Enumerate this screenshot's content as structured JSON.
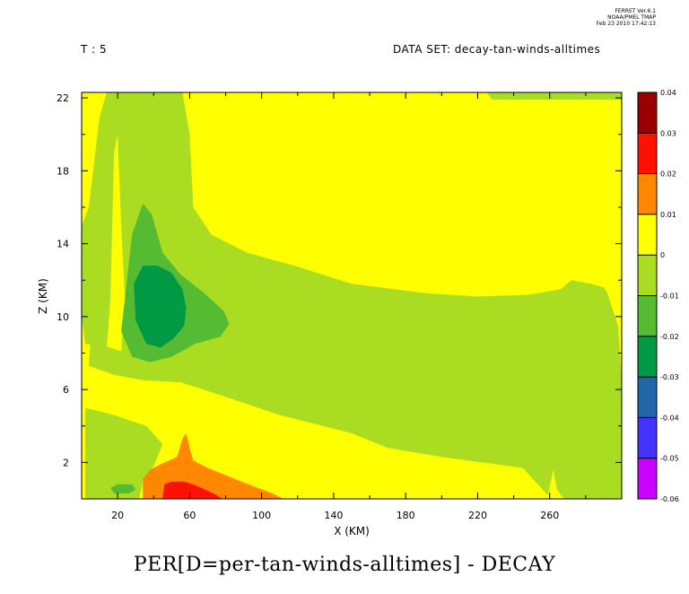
{
  "header": {
    "program_lines": [
      "FERRET Ver.6.1",
      "NOAA/PMEL TMAP",
      "Feb 23 2010 17:42:13"
    ],
    "time_label": "T : 5",
    "dataset_label": "DATA SET: decay-tan-winds-alltimes"
  },
  "chart_data": {
    "type": "heatmap",
    "title": "PER[D=per-tan-winds-alltimes] - DECAY",
    "xlabel": "X (KM)",
    "ylabel": "Z (KM)",
    "xlim": [
      0,
      300
    ],
    "ylim": [
      0,
      22.3
    ],
    "x_ticks": [
      20,
      60,
      100,
      140,
      180,
      220,
      260
    ],
    "y_ticks": [
      2,
      6,
      10,
      14,
      18,
      22
    ],
    "grid": false,
    "legend": "right",
    "colorbar": {
      "levels": [
        -0.06,
        -0.05,
        -0.04,
        -0.03,
        -0.02,
        -0.01,
        0,
        0.01,
        0.02,
        0.03,
        0.04
      ],
      "tick_labels": [
        "-0.06",
        "-0.05",
        "-0.04",
        "-0.03",
        "-0.02",
        "-0.01",
        "0",
        "0.01",
        "0.02",
        "0.03",
        "0.04"
      ],
      "colors": [
        "#cc00ff",
        "#4433ff",
        "#2266aa",
        "#009944",
        "#55bb33",
        "#aadd22",
        "#ffff00",
        "#ff8800",
        "#ff1100",
        "#990000"
      ]
    },
    "regions": [
      {
        "band": "0 to 0.01",
        "color": "#ffff00",
        "polygon": [
          [
            0,
            0
          ],
          [
            300,
            0
          ],
          [
            300,
            22.3
          ],
          [
            0,
            22.3
          ]
        ]
      },
      {
        "band": "-0.01 to 0",
        "color": "#aadd22",
        "polygon": [
          [
            0,
            15
          ],
          [
            4,
            16
          ],
          [
            10,
            21
          ],
          [
            14,
            22.3
          ],
          [
            56,
            22.3
          ],
          [
            60,
            20
          ],
          [
            62,
            16
          ],
          [
            72,
            14.5
          ],
          [
            92,
            13.5
          ],
          [
            118,
            12.8
          ],
          [
            150,
            11.8
          ],
          [
            190,
            11.3
          ],
          [
            220,
            11.1
          ],
          [
            248,
            11.2
          ],
          [
            266,
            11.5
          ],
          [
            272,
            12
          ],
          [
            283,
            11.8
          ],
          [
            290,
            11.6
          ],
          [
            292,
            11.3
          ],
          [
            298,
            9.5
          ],
          [
            300,
            6.5
          ],
          [
            300,
            0
          ],
          [
            268,
            0
          ],
          [
            264,
            0.5
          ],
          [
            262,
            1.6
          ],
          [
            259,
            0.2
          ],
          [
            245,
            1.7
          ],
          [
            200,
            2.3
          ],
          [
            170,
            2.8
          ],
          [
            150,
            3.6
          ],
          [
            110,
            4.6
          ],
          [
            80,
            5.6
          ],
          [
            55,
            6.4
          ],
          [
            35,
            6.5
          ],
          [
            18,
            6.8
          ],
          [
            4,
            7.3
          ],
          [
            5,
            8.7
          ],
          [
            10,
            8.5
          ],
          [
            22,
            8.1
          ],
          [
            24,
            11
          ],
          [
            22,
            15
          ],
          [
            20,
            20
          ],
          [
            18,
            19
          ],
          [
            17,
            15
          ],
          [
            16,
            11
          ],
          [
            14,
            8.3
          ],
          [
            2,
            8.5
          ],
          [
            0,
            10
          ]
        ]
      },
      {
        "band": "-0.01 to 0",
        "color": "#aadd22",
        "polygon": [
          [
            2,
            0
          ],
          [
            2,
            5
          ],
          [
            18,
            4.6
          ],
          [
            36,
            4.0
          ],
          [
            45,
            3.0
          ],
          [
            40,
            1.8
          ],
          [
            34,
            1.0
          ],
          [
            32,
            0
          ]
        ]
      },
      {
        "band": "-0.01 to 0",
        "color": "#aadd22",
        "polygon": [
          [
            225,
            22.3
          ],
          [
            300,
            22.3
          ],
          [
            300,
            21.9
          ],
          [
            228,
            21.9
          ]
        ]
      },
      {
        "band": "-0.02 to -0.01",
        "color": "#55bb33",
        "polygon": [
          [
            22,
            9.2
          ],
          [
            24,
            11
          ],
          [
            28,
            14.5
          ],
          [
            34,
            16.2
          ],
          [
            39,
            15.6
          ],
          [
            45,
            13.5
          ],
          [
            55,
            12.3
          ],
          [
            68,
            11.3
          ],
          [
            79,
            10.3
          ],
          [
            82,
            9.6
          ],
          [
            77,
            8.9
          ],
          [
            63,
            8.5
          ],
          [
            50,
            7.8
          ],
          [
            38,
            7.5
          ],
          [
            28,
            7.8
          ]
        ]
      },
      {
        "band": "-0.02 to -0.01",
        "color": "#55bb33",
        "polygon": [
          [
            16,
            0.6
          ],
          [
            20,
            0.8
          ],
          [
            28,
            0.8
          ],
          [
            30,
            0.5
          ],
          [
            26,
            0.3
          ],
          [
            18,
            0.3
          ]
        ]
      },
      {
        "band": "-0.03 to -0.02",
        "color": "#009944",
        "polygon": [
          [
            30,
            9.8
          ],
          [
            29,
            11.8
          ],
          [
            34,
            12.8
          ],
          [
            42,
            12.8
          ],
          [
            50,
            12.4
          ],
          [
            56,
            11.5
          ],
          [
            58,
            10.5
          ],
          [
            57,
            9.5
          ],
          [
            51,
            8.8
          ],
          [
            44,
            8.3
          ],
          [
            36,
            8.5
          ]
        ]
      },
      {
        "band": "0.01 to 0.02",
        "color": "#ff8800",
        "polygon": [
          [
            34,
            0
          ],
          [
            34,
            1.1
          ],
          [
            38,
            1.6
          ],
          [
            46,
            2.0
          ],
          [
            53,
            2.3
          ],
          [
            56,
            3.3
          ],
          [
            58,
            3.6
          ],
          [
            60,
            2.8
          ],
          [
            62,
            2.1
          ],
          [
            70,
            1.7
          ],
          [
            80,
            1.3
          ],
          [
            90,
            0.9
          ],
          [
            106,
            0.3
          ],
          [
            112,
            0
          ]
        ]
      },
      {
        "band": "0.02 to 0.03",
        "color": "#ff1100",
        "polygon": [
          [
            45,
            0
          ],
          [
            46,
            0.8
          ],
          [
            50,
            0.95
          ],
          [
            57,
            0.95
          ],
          [
            63,
            0.75
          ],
          [
            70,
            0.45
          ],
          [
            75,
            0.2
          ],
          [
            78,
            0
          ]
        ]
      }
    ]
  }
}
